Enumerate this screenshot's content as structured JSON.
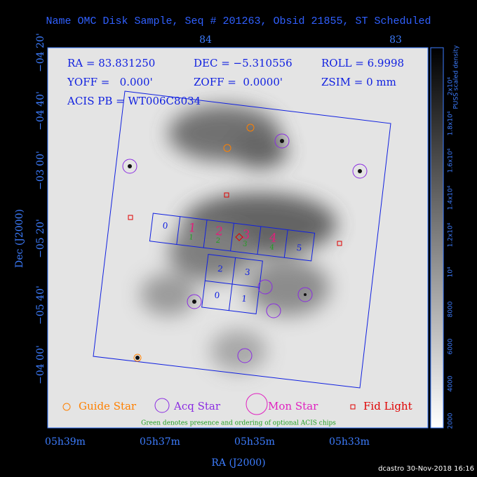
{
  "title": "Name OMC Disk Sample, Seq # 201263, Obsid 21855, ST Scheduled",
  "top_axis": [
    "84",
    "83"
  ],
  "left_axis": [
    "−04 20'",
    "−04 40'",
    "−03 00'",
    "−05 20'",
    "−05 40'",
    "−04 00'"
  ],
  "bottom_axis": [
    "05h39m",
    "05h37m",
    "05h35m",
    "05h33m"
  ],
  "x_label": "RA (J2000)",
  "y_label": "Dec (J2000)",
  "info": [
    "RA = 83.831250",
    "DEC = −5.310556",
    "ROLL = 6.9998",
    "YOFF =   0.000'",
    "ZOFF =  0.0000'",
    "ZSIM = 0 mm",
    "ACIS PB = WT006C8034"
  ],
  "s_chips": [
    "0",
    "1",
    "2",
    "3",
    "4",
    "5"
  ],
  "i_chips": [
    "2",
    "3",
    "0",
    "1"
  ],
  "optional_chips": [
    "1",
    "2",
    "3",
    "4"
  ],
  "legend": [
    "Guide Star",
    "Acq Star",
    "Mon Star",
    "Fid Light"
  ],
  "note": "Green denotes presence and ordering of optional ACIS chips",
  "colorbar": {
    "title": "PUSS scaled density",
    "labels": [
      "2000",
      "4000",
      "6000",
      "8000",
      "10⁴",
      "1.2x10⁴",
      "1.4x10⁴",
      "1.6x10⁴",
      "1.8x10⁴",
      "2x10⁴"
    ]
  },
  "footer": "dcastro 30-Nov-2018 16:16"
}
